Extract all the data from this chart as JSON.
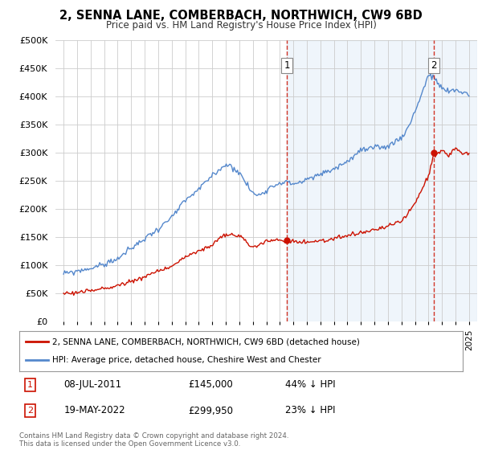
{
  "title": "2, SENNA LANE, COMBERBACH, NORTHWICH, CW9 6BD",
  "subtitle": "Price paid vs. HM Land Registry's House Price Index (HPI)",
  "background_color": "#ffffff",
  "plot_bg_color": "#ffffff",
  "shade_color": "#ddeeff",
  "legend_label_red": "2, SENNA LANE, COMBERBACH, NORTHWICH, CW9 6BD (detached house)",
  "legend_label_blue": "HPI: Average price, detached house, Cheshire West and Chester",
  "sale1_date": "08-JUL-2011",
  "sale1_price": 145000,
  "sale2_date": "19-MAY-2022",
  "sale2_price": 299950,
  "sale1_pct": "44% ↓ HPI",
  "sale2_pct": "23% ↓ HPI",
  "footer": "Contains HM Land Registry data © Crown copyright and database right 2024.\nThis data is licensed under the Open Government Licence v3.0.",
  "ylim": [
    0,
    500000
  ],
  "yticks": [
    0,
    50000,
    100000,
    150000,
    200000,
    250000,
    300000,
    350000,
    400000,
    450000,
    500000
  ],
  "red_color": "#cc1100",
  "blue_color": "#5588cc",
  "dashed_color": "#cc1100",
  "marker1_x_year": 2011.52,
  "marker2_x_year": 2022.38,
  "xlim_left": 1994.4,
  "xlim_right": 2025.6
}
